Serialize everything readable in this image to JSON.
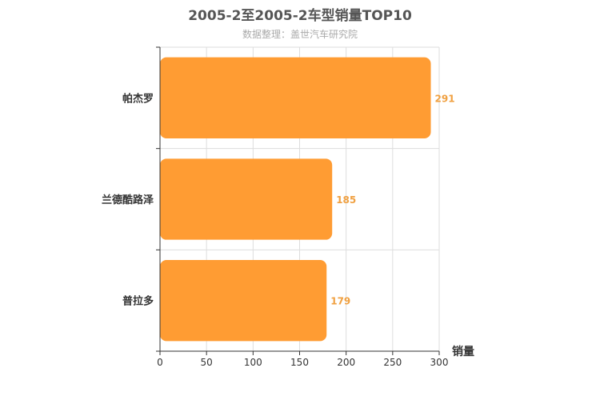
{
  "chart_data": {
    "type": "bar",
    "orientation": "horizontal",
    "title": "2005-2至2005-2车型销量TOP10",
    "subtitle": "数据整理：盖世汽车研究院",
    "categories": [
      "帕杰罗",
      "兰德酷路泽",
      "普拉多"
    ],
    "values": [
      291,
      185,
      179
    ],
    "xlabel": "销量",
    "ylabel": "",
    "xlim": [
      0,
      300
    ],
    "xticks": [
      0,
      50,
      100,
      150,
      200,
      250,
      300
    ],
    "grid": true,
    "legend": "none",
    "bar_color": "#ff9c33",
    "value_label_color": "#f0a040"
  }
}
